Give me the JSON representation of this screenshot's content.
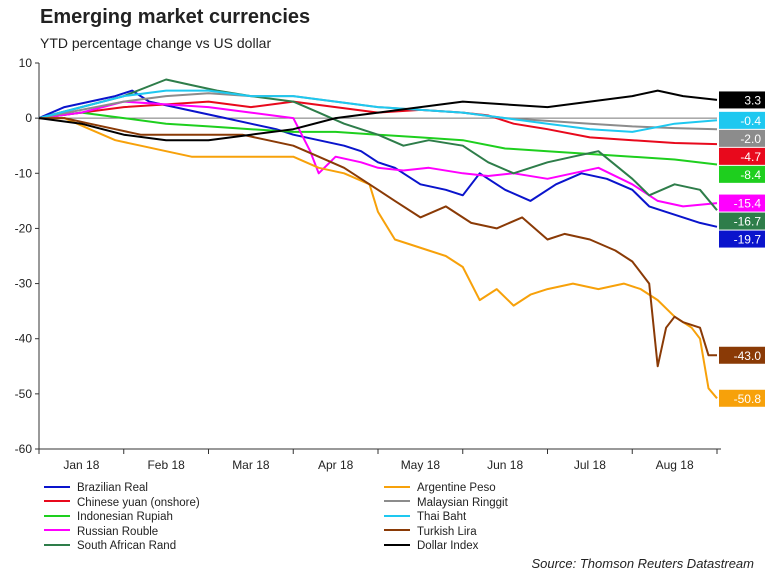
{
  "header": {
    "title": "Emerging market currencies",
    "subtitle": "YTD percentage change vs US dollar",
    "source": "Source: Thomson Reuters Datastream"
  },
  "chart_data": {
    "type": "line",
    "title": "Emerging market currencies",
    "subtitle": "YTD percentage change vs US dollar",
    "xlabel": "",
    "ylabel": "",
    "ylim": [
      -60,
      10
    ],
    "yticks": [
      10,
      0,
      -10,
      -20,
      -30,
      -40,
      -50,
      -60
    ],
    "xlim": [
      0,
      8
    ],
    "xtick_labels": [
      "Jan 18",
      "Feb 18",
      "Mar 18",
      "Apr 18",
      "May 18",
      "Jun 18",
      "Jul 18",
      "Aug 18"
    ],
    "x_unit": "months since 1 Jan 2018",
    "grid": false,
    "zero_line": true,
    "legend_position": "bottom",
    "series": [
      {
        "name": "Brazilian Real",
        "color": "#0a14cc",
        "end_label": "-19.7",
        "x": [
          0,
          0.3,
          0.6,
          0.9,
          1.1,
          1.3,
          1.6,
          1.9,
          2.2,
          2.5,
          2.8,
          3.0,
          3.3,
          3.6,
          3.8,
          4.0,
          4.2,
          4.5,
          4.8,
          5.0,
          5.2,
          5.5,
          5.8,
          6.1,
          6.4,
          6.7,
          7.0,
          7.2,
          7.4,
          7.6,
          7.8,
          8.0
        ],
        "values": [
          0,
          2,
          3,
          4,
          5,
          3,
          2,
          1,
          0,
          -1,
          -2,
          -3,
          -4,
          -5,
          -6,
          -8,
          -9,
          -12,
          -13,
          -14,
          -10,
          -13,
          -15,
          -12,
          -10,
          -11,
          -13,
          -16,
          -17,
          -18,
          -19,
          -19.7
        ]
      },
      {
        "name": "Chinese yuan (onshore)",
        "color": "#e8091c",
        "end_label": "-4.7",
        "x": [
          0,
          0.5,
          1.0,
          1.5,
          2.0,
          2.5,
          3.0,
          3.5,
          4.0,
          4.5,
          5.0,
          5.3,
          5.6,
          6.0,
          6.5,
          7.0,
          7.5,
          8.0
        ],
        "values": [
          0,
          1,
          2,
          2.5,
          3,
          2,
          3,
          2,
          1,
          1.5,
          1,
          0.5,
          -1,
          -2,
          -3.5,
          -4,
          -4.5,
          -4.7
        ]
      },
      {
        "name": "Indonesian Rupiah",
        "color": "#1ecf1e",
        "end_label": "-8.4",
        "x": [
          0,
          0.5,
          1.0,
          1.5,
          2.0,
          2.5,
          3.0,
          3.5,
          4.0,
          4.5,
          5.0,
          5.5,
          6.0,
          6.5,
          7.0,
          7.5,
          8.0
        ],
        "values": [
          0,
          1,
          0,
          -1,
          -1.5,
          -2,
          -2.5,
          -2.5,
          -3,
          -3.5,
          -4,
          -5.5,
          -6,
          -6.5,
          -7,
          -7.5,
          -8.4
        ]
      },
      {
        "name": "Russian Rouble",
        "color": "#ff00ff",
        "end_label": "-15.4",
        "x": [
          0,
          0.5,
          1.0,
          1.5,
          2.0,
          2.5,
          3.0,
          3.2,
          3.3,
          3.5,
          3.8,
          4.0,
          4.3,
          4.6,
          5.0,
          5.3,
          5.6,
          6.0,
          6.3,
          6.6,
          7.0,
          7.3,
          7.6,
          8.0
        ],
        "values": [
          0,
          1,
          3,
          2.5,
          2,
          1,
          0,
          -6,
          -10,
          -7,
          -8,
          -9,
          -9.5,
          -9,
          -10,
          -10.5,
          -10,
          -11,
          -10,
          -9,
          -12,
          -15,
          -16,
          -15.4
        ]
      },
      {
        "name": "South African Rand",
        "color": "#2e7d4a",
        "end_label": "-16.7",
        "x": [
          0,
          0.5,
          1.0,
          1.5,
          1.8,
          2.1,
          2.5,
          3.0,
          3.3,
          3.6,
          4.0,
          4.3,
          4.6,
          5.0,
          5.3,
          5.6,
          6.0,
          6.3,
          6.6,
          7.0,
          7.2,
          7.5,
          7.8,
          8.0
        ],
        "values": [
          0,
          2,
          4,
          7,
          6,
          5,
          4,
          3,
          1,
          -1,
          -3,
          -5,
          -4,
          -5,
          -8,
          -10,
          -8,
          -7,
          -6,
          -11,
          -14,
          -12,
          -13,
          -16.7
        ]
      },
      {
        "name": "Argentine Peso",
        "color": "#f7a10a",
        "end_label": "-50.8",
        "x": [
          0,
          0.3,
          0.6,
          0.9,
          1.2,
          1.5,
          1.8,
          2.1,
          2.4,
          2.7,
          3.0,
          3.3,
          3.6,
          3.9,
          4.0,
          4.2,
          4.4,
          4.6,
          4.8,
          5.0,
          5.2,
          5.4,
          5.6,
          5.8,
          6.0,
          6.3,
          6.6,
          6.9,
          7.1,
          7.3,
          7.5,
          7.7,
          7.8,
          7.9,
          8.0
        ],
        "values": [
          0,
          0,
          -2,
          -4,
          -5,
          -6,
          -7,
          -7,
          -7,
          -7,
          -7,
          -9,
          -10,
          -12,
          -17,
          -22,
          -23,
          -24,
          -25,
          -27,
          -33,
          -31,
          -34,
          -32,
          -31,
          -30,
          -31,
          -30,
          -31,
          -33,
          -36,
          -38,
          -40,
          -49,
          -50.8
        ]
      },
      {
        "name": "Malaysian Ringgit",
        "color": "#8c8c8c",
        "end_label": "-2.0",
        "x": [
          0,
          0.5,
          1.0,
          1.5,
          2.0,
          2.5,
          3.0,
          3.5,
          4.0,
          4.5,
          5.0,
          5.5,
          6.0,
          6.5,
          7.0,
          7.5,
          8.0
        ],
        "values": [
          0,
          1.5,
          3,
          4,
          4.5,
          4,
          4,
          3,
          2,
          1.5,
          1,
          0,
          -0.5,
          -1,
          -1.5,
          -1.8,
          -2.0
        ]
      },
      {
        "name": "Thai Baht",
        "color": "#1ec8f0",
        "end_label": "-0.4",
        "x": [
          0,
          0.5,
          1.0,
          1.5,
          2.0,
          2.5,
          3.0,
          3.5,
          4.0,
          4.5,
          5.0,
          5.5,
          6.0,
          6.5,
          7.0,
          7.5,
          8.0
        ],
        "values": [
          0,
          2,
          4,
          5,
          5,
          4,
          4,
          3,
          2,
          1.5,
          1,
          0,
          -1,
          -2,
          -2.5,
          -1,
          -0.4
        ]
      },
      {
        "name": "Turkish Lira",
        "color": "#8a3a06",
        "end_label": "-43.0",
        "x": [
          0,
          0.3,
          0.6,
          0.9,
          1.2,
          1.5,
          1.8,
          2.1,
          2.4,
          2.7,
          3.0,
          3.3,
          3.6,
          3.9,
          4.2,
          4.5,
          4.8,
          5.1,
          5.4,
          5.7,
          6.0,
          6.2,
          6.5,
          6.8,
          7.0,
          7.2,
          7.3,
          7.4,
          7.5,
          7.6,
          7.8,
          7.9,
          8.0
        ],
        "values": [
          0,
          0,
          -1,
          -2,
          -3,
          -3,
          -3,
          -3,
          -3,
          -4,
          -5,
          -7,
          -9,
          -12,
          -15,
          -18,
          -16,
          -19,
          -20,
          -18,
          -22,
          -21,
          -22,
          -24,
          -26,
          -30,
          -45,
          -38,
          -36,
          -37,
          -38,
          -43,
          -43.0
        ]
      },
      {
        "name": "Dollar Index",
        "color": "#000000",
        "end_label": "3.3",
        "x": [
          0,
          0.5,
          1.0,
          1.5,
          2.0,
          2.5,
          3.0,
          3.5,
          4.0,
          4.5,
          5.0,
          5.5,
          6.0,
          6.5,
          7.0,
          7.3,
          7.6,
          8.0
        ],
        "values": [
          0,
          -1,
          -3,
          -4,
          -4,
          -3,
          -2,
          0,
          1,
          2,
          3,
          2.5,
          2,
          3,
          4,
          5,
          4,
          3.3
        ]
      }
    ]
  }
}
